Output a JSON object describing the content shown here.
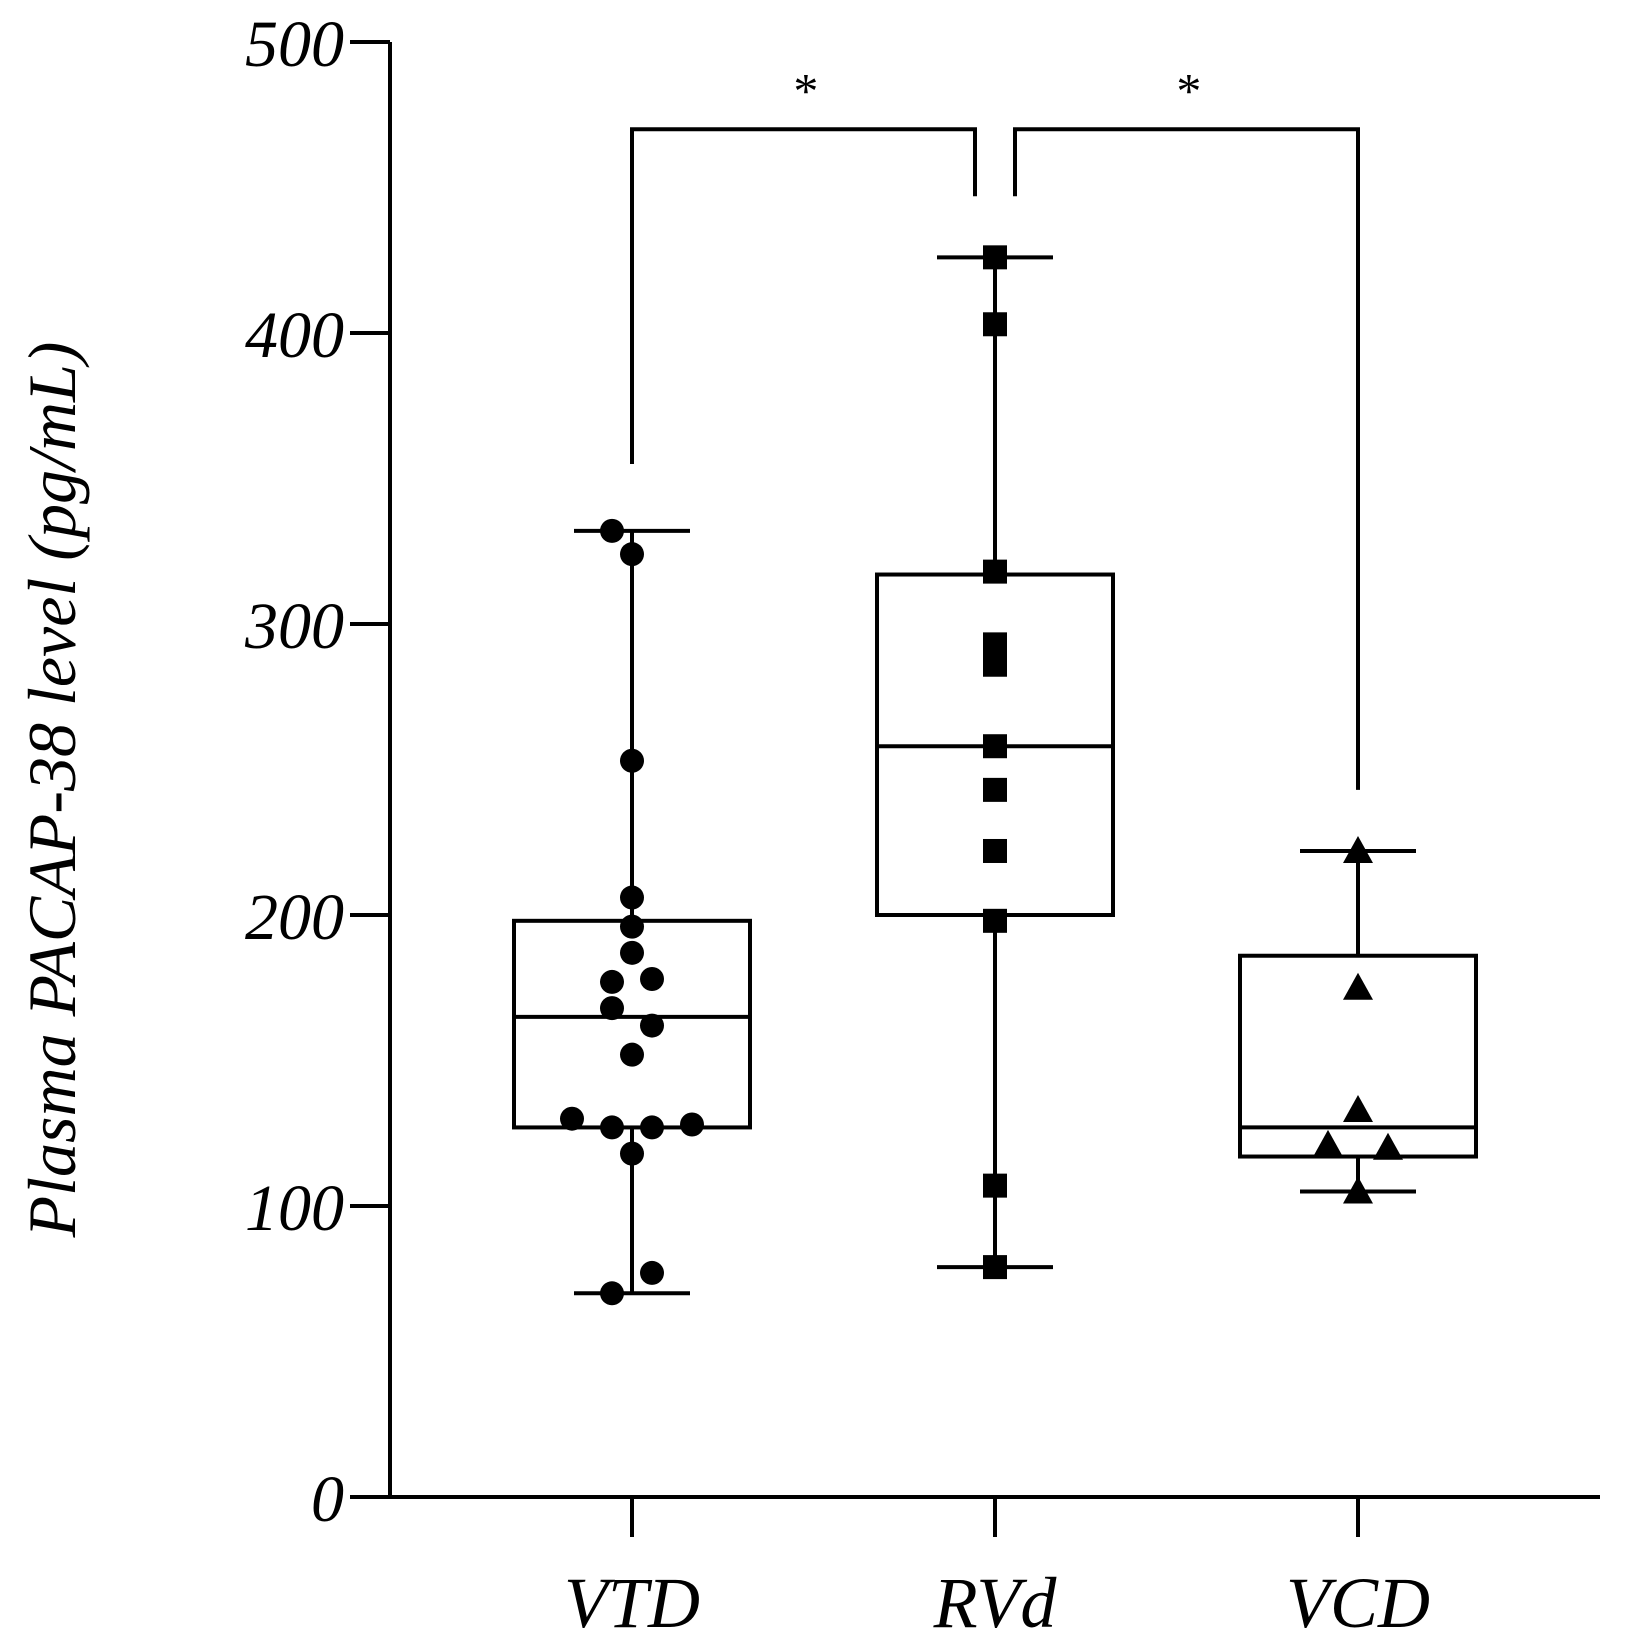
{
  "chart_data": {
    "type": "box",
    "title": "",
    "xlabel": "",
    "ylabel": "Plasma PACAP-38 level (pg/mL)",
    "ylim": [
      0,
      500
    ],
    "yticks": [
      "0",
      "100",
      "200",
      "300",
      "400",
      "500"
    ],
    "categories": [
      "VTD",
      "RVd",
      "VCD"
    ],
    "color": "#000000",
    "groups": [
      {
        "name": "VTD",
        "marker": "circle",
        "min": 70,
        "q1": 127,
        "median": 165,
        "q3": 198,
        "max": 332,
        "points": [
          {
            "v": 332,
            "o": -0.2
          },
          {
            "v": 324,
            "o": 0.0
          },
          {
            "v": 253,
            "o": 0.0
          },
          {
            "v": 206,
            "o": 0.0
          },
          {
            "v": 196,
            "o": 0.0
          },
          {
            "v": 187,
            "o": 0.0
          },
          {
            "v": 178,
            "o": 0.2
          },
          {
            "v": 177,
            "o": -0.2
          },
          {
            "v": 168,
            "o": -0.2
          },
          {
            "v": 162,
            "o": 0.2
          },
          {
            "v": 152,
            "o": 0.0
          },
          {
            "v": 130,
            "o": -0.6
          },
          {
            "v": 128,
            "o": 0.6
          },
          {
            "v": 127,
            "o": -0.2
          },
          {
            "v": 127,
            "o": 0.2
          },
          {
            "v": 118,
            "o": 0.0
          },
          {
            "v": 77,
            "o": 0.2
          },
          {
            "v": 70,
            "o": -0.2
          }
        ]
      },
      {
        "name": "RVd",
        "marker": "square",
        "min": 79,
        "q1": 200,
        "median": 258,
        "q3": 317,
        "max": 426,
        "points": [
          {
            "v": 426,
            "o": 0.0
          },
          {
            "v": 403,
            "o": 0.0
          },
          {
            "v": 318,
            "o": 0.0
          },
          {
            "v": 293,
            "o": 0.0
          },
          {
            "v": 286,
            "o": 0.0
          },
          {
            "v": 258,
            "o": 0.0
          },
          {
            "v": 243,
            "o": 0.0
          },
          {
            "v": 222,
            "o": 0.0
          },
          {
            "v": 198,
            "o": 0.0
          },
          {
            "v": 107,
            "o": 0.0
          },
          {
            "v": 79,
            "o": 0.0
          }
        ]
      },
      {
        "name": "VCD",
        "marker": "triangle",
        "min": 105,
        "q1": 117,
        "median": 127,
        "q3": 186,
        "max": 222,
        "points": [
          {
            "v": 222,
            "o": 0.0
          },
          {
            "v": 175,
            "o": 0.0
          },
          {
            "v": 133,
            "o": 0.0
          },
          {
            "v": 121,
            "o": -0.3
          },
          {
            "v": 120,
            "o": 0.3
          },
          {
            "v": 105,
            "o": 0.0
          }
        ]
      }
    ],
    "significance": [
      {
        "from": "VTD",
        "to": "RVd",
        "label": "*",
        "y": 470
      },
      {
        "from": "RVd",
        "to": "VCD",
        "label": "*",
        "y": 470
      }
    ]
  }
}
